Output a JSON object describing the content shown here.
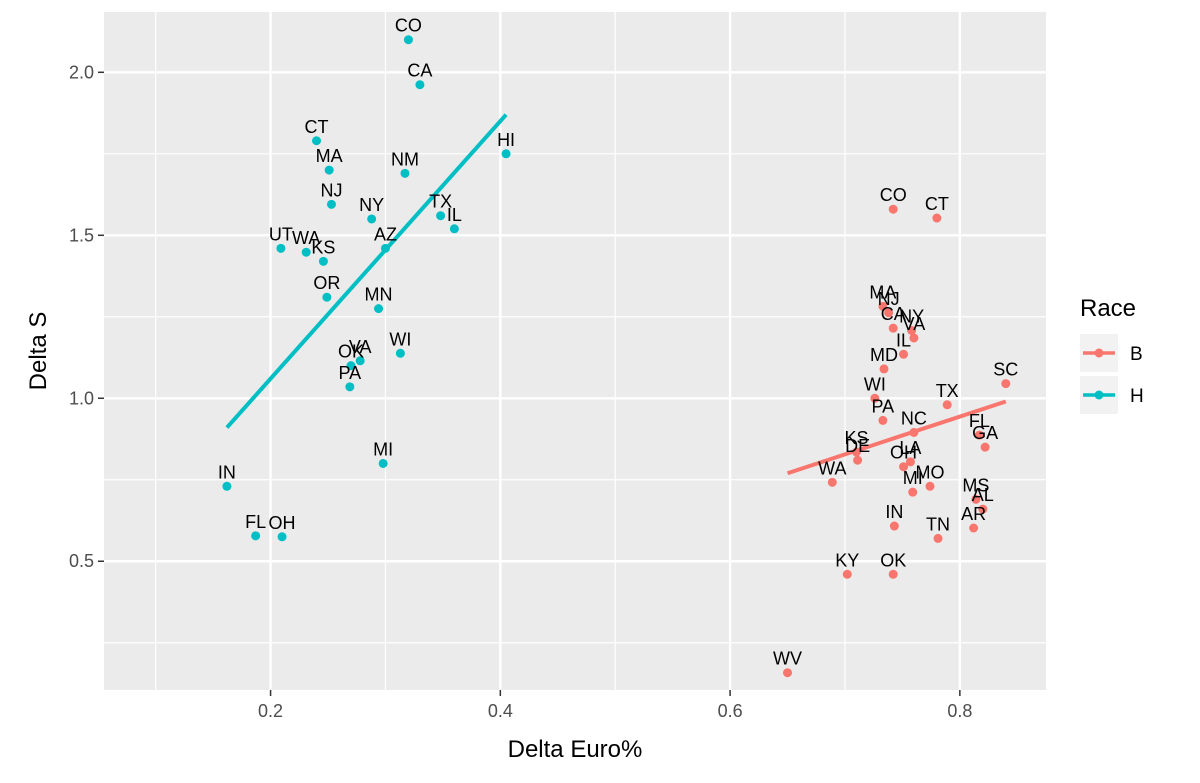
{
  "chart_data": {
    "type": "scatter",
    "xlabel": "Delta Euro%",
    "ylabel": "Delta S",
    "xlim": [
      0.055,
      0.875
    ],
    "ylim": [
      0.105,
      2.185
    ],
    "x_ticks": [
      0.2,
      0.4,
      0.6,
      0.8
    ],
    "x_tick_labels": [
      "0.2",
      "0.4",
      "0.6",
      "0.8"
    ],
    "y_ticks": [
      0.5,
      1.0,
      1.5,
      2.0
    ],
    "y_tick_labels": [
      "0.5",
      "1.0",
      "1.5",
      "2.0"
    ],
    "grid": true,
    "legend": {
      "title": "Race",
      "position": "right",
      "entries": [
        {
          "label": "B",
          "color": "#f8766d"
        },
        {
          "label": "H",
          "color": "#00bfc4"
        }
      ]
    },
    "series": [
      {
        "name": "B",
        "color": "#f8766d",
        "trend": {
          "x": [
            0.65,
            0.84
          ],
          "y": [
            0.77,
            0.99
          ]
        },
        "points": [
          {
            "label": "CO",
            "x": 0.742,
            "y": 1.58
          },
          {
            "label": "CT",
            "x": 0.78,
            "y": 1.553
          },
          {
            "label": "MA",
            "x": 0.733,
            "y": 1.282
          },
          {
            "label": "NJ",
            "x": 0.738,
            "y": 1.262
          },
          {
            "label": "CA",
            "x": 0.742,
            "y": 1.215
          },
          {
            "label": "NY",
            "x": 0.758,
            "y": 1.208
          },
          {
            "label": "VA",
            "x": 0.76,
            "y": 1.185
          },
          {
            "label": "IL",
            "x": 0.751,
            "y": 1.135
          },
          {
            "label": "MD",
            "x": 0.734,
            "y": 1.09
          },
          {
            "label": "SC",
            "x": 0.84,
            "y": 1.045
          },
          {
            "label": "WI",
            "x": 0.726,
            "y": 1.0
          },
          {
            "label": "TX",
            "x": 0.789,
            "y": 0.98
          },
          {
            "label": "PA",
            "x": 0.733,
            "y": 0.932
          },
          {
            "label": "FL",
            "x": 0.817,
            "y": 0.887
          },
          {
            "label": "NC",
            "x": 0.76,
            "y": 0.895
          },
          {
            "label": "GA",
            "x": 0.822,
            "y": 0.85
          },
          {
            "label": "KS",
            "x": 0.71,
            "y": 0.835
          },
          {
            "label": "DE",
            "x": 0.711,
            "y": 0.81
          },
          {
            "label": "LA",
            "x": 0.757,
            "y": 0.805
          },
          {
            "label": "OH",
            "x": 0.751,
            "y": 0.79
          },
          {
            "label": "MO",
            "x": 0.774,
            "y": 0.73
          },
          {
            "label": "MI",
            "x": 0.759,
            "y": 0.712
          },
          {
            "label": "WA",
            "x": 0.689,
            "y": 0.742
          },
          {
            "label": "MS",
            "x": 0.814,
            "y": 0.69
          },
          {
            "label": "AL",
            "x": 0.82,
            "y": 0.66
          },
          {
            "label": "IN",
            "x": 0.743,
            "y": 0.608
          },
          {
            "label": "AR",
            "x": 0.812,
            "y": 0.602
          },
          {
            "label": "TN",
            "x": 0.781,
            "y": 0.57
          },
          {
            "label": "KY",
            "x": 0.702,
            "y": 0.46
          },
          {
            "label": "OK",
            "x": 0.742,
            "y": 0.46
          },
          {
            "label": "WV",
            "x": 0.65,
            "y": 0.158
          }
        ]
      },
      {
        "name": "H",
        "color": "#00bfc4",
        "trend": {
          "x": [
            0.162,
            0.405
          ],
          "y": [
            0.91,
            1.87
          ]
        },
        "points": [
          {
            "label": "CO",
            "x": 0.32,
            "y": 2.1
          },
          {
            "label": "CA",
            "x": 0.33,
            "y": 1.962
          },
          {
            "label": "CT",
            "x": 0.24,
            "y": 1.79
          },
          {
            "label": "HI",
            "x": 0.405,
            "y": 1.75
          },
          {
            "label": "MA",
            "x": 0.251,
            "y": 1.7
          },
          {
            "label": "NM",
            "x": 0.317,
            "y": 1.69
          },
          {
            "label": "NJ",
            "x": 0.253,
            "y": 1.595
          },
          {
            "label": "NY",
            "x": 0.288,
            "y": 1.55
          },
          {
            "label": "TX",
            "x": 0.348,
            "y": 1.56
          },
          {
            "label": "IL",
            "x": 0.36,
            "y": 1.52
          },
          {
            "label": "AZ",
            "x": 0.3,
            "y": 1.46
          },
          {
            "label": "UT",
            "x": 0.209,
            "y": 1.46
          },
          {
            "label": "WA",
            "x": 0.231,
            "y": 1.448
          },
          {
            "label": "KS",
            "x": 0.246,
            "y": 1.42
          },
          {
            "label": "OR",
            "x": 0.249,
            "y": 1.31
          },
          {
            "label": "MN",
            "x": 0.294,
            "y": 1.275
          },
          {
            "label": "WI",
            "x": 0.313,
            "y": 1.138
          },
          {
            "label": "VA",
            "x": 0.278,
            "y": 1.115
          },
          {
            "label": "OK",
            "x": 0.27,
            "y": 1.1
          },
          {
            "label": "PA",
            "x": 0.269,
            "y": 1.035
          },
          {
            "label": "MI",
            "x": 0.298,
            "y": 0.8
          },
          {
            "label": "IN",
            "x": 0.162,
            "y": 0.73
          },
          {
            "label": "FL",
            "x": 0.187,
            "y": 0.578
          },
          {
            "label": "OH",
            "x": 0.21,
            "y": 0.575
          }
        ]
      }
    ]
  }
}
